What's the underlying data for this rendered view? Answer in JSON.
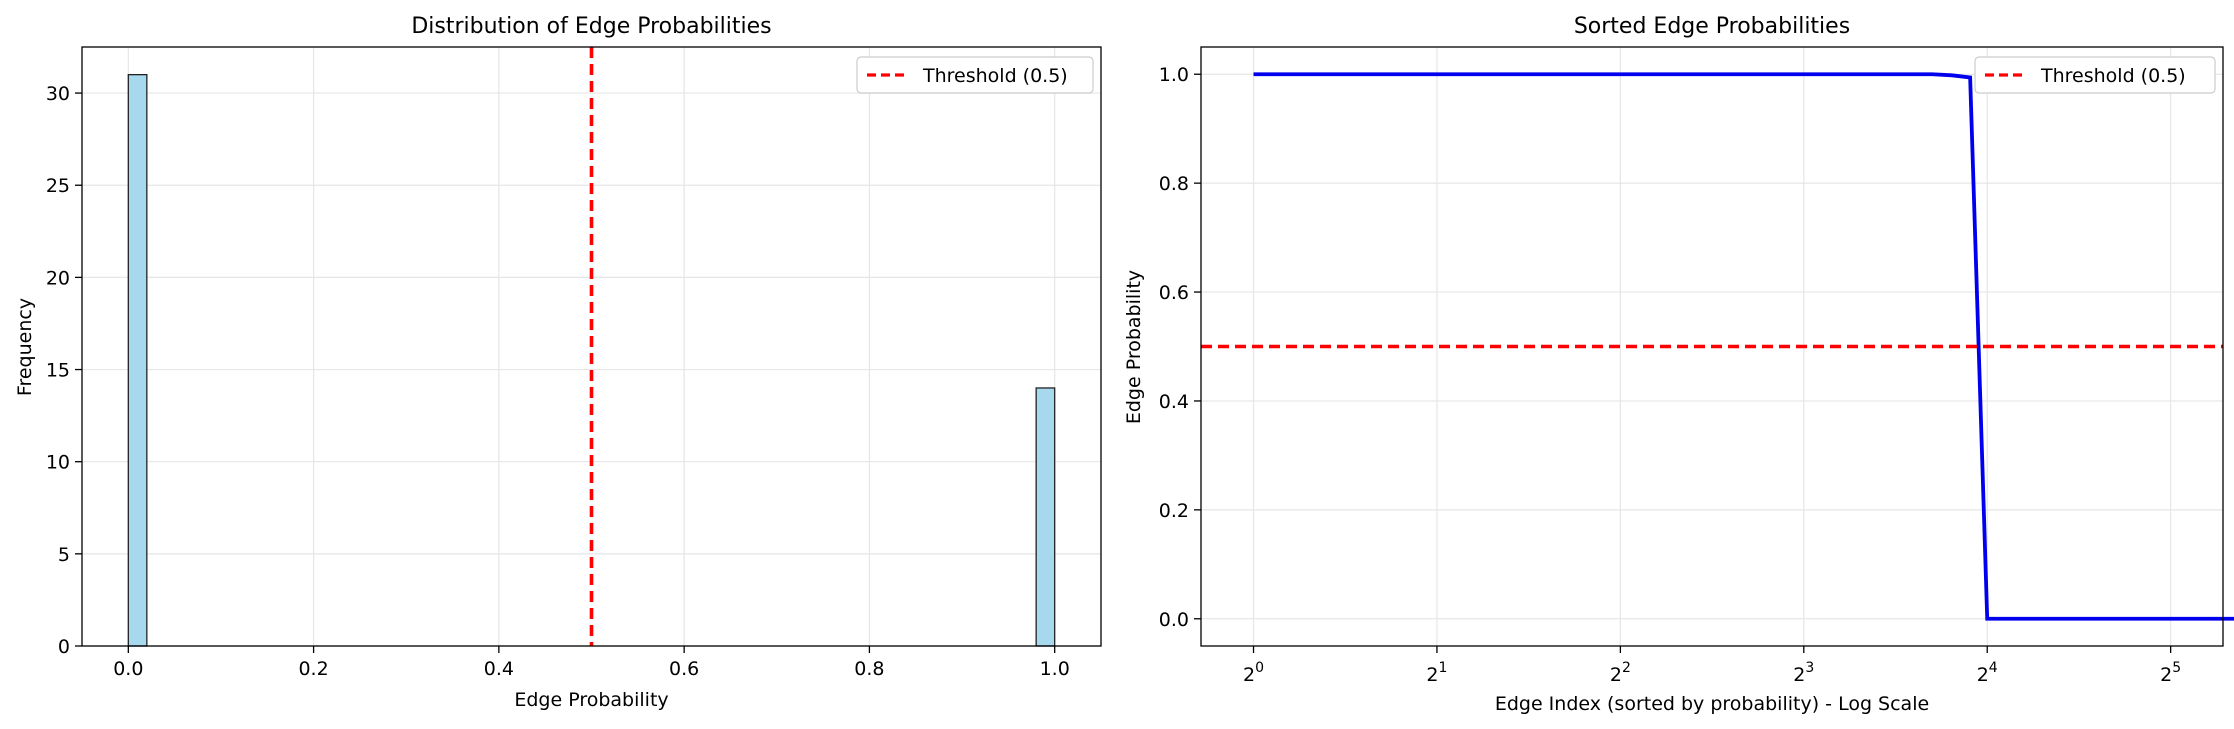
{
  "chart_data": [
    {
      "type": "bar",
      "title": "Distribution of Edge Probabilities",
      "xlabel": "Edge Probability",
      "ylabel": "Frequency",
      "xlim": [
        -0.05,
        1.05
      ],
      "ylim": [
        0,
        32.5
      ],
      "xticks": [
        "0.0",
        "0.2",
        "0.4",
        "0.6",
        "0.8",
        "1.0"
      ],
      "yticks": [
        "0",
        "5",
        "10",
        "15",
        "20",
        "25",
        "30"
      ],
      "bins": [
        {
          "x0": 0.0,
          "x1": 0.02,
          "count": 31
        },
        {
          "x0": 0.98,
          "x1": 1.0,
          "count": 14
        }
      ],
      "bar_color": "#a6d8ee",
      "threshold": {
        "value": 0.5,
        "label": "Threshold (0.5)",
        "color": "#ff0000"
      },
      "grid": true,
      "legend": "top-right"
    },
    {
      "type": "line",
      "title": "Sorted Edge Probabilities",
      "xlabel": "Edge Index (sorted by probability) - Log Scale",
      "ylabel": "Edge Probability",
      "xscale": "log2",
      "xlim": [
        0.82,
        39
      ],
      "ylim": [
        -0.05,
        1.05
      ],
      "xticks": [
        {
          "base": "2",
          "exp": "0"
        },
        {
          "base": "2",
          "exp": "1"
        },
        {
          "base": "2",
          "exp": "2"
        },
        {
          "base": "2",
          "exp": "3"
        },
        {
          "base": "2",
          "exp": "4"
        },
        {
          "base": "2",
          "exp": "5"
        }
      ],
      "yticks": [
        "0.0",
        "0.2",
        "0.4",
        "0.6",
        "0.8",
        "1.0"
      ],
      "series": [
        {
          "color": "#0000ee",
          "x": [
            1,
            11,
            13,
            14,
            15,
            16,
            20,
            30,
            45
          ],
          "y": [
            1.0,
            1.0,
            1.0,
            0.998,
            0.994,
            0.0,
            0.0,
            0.0,
            0.0
          ]
        }
      ],
      "threshold": {
        "value": 0.5,
        "label": "Threshold (0.5)",
        "color": "#ff0000"
      },
      "grid": true,
      "legend": "top-right"
    }
  ]
}
